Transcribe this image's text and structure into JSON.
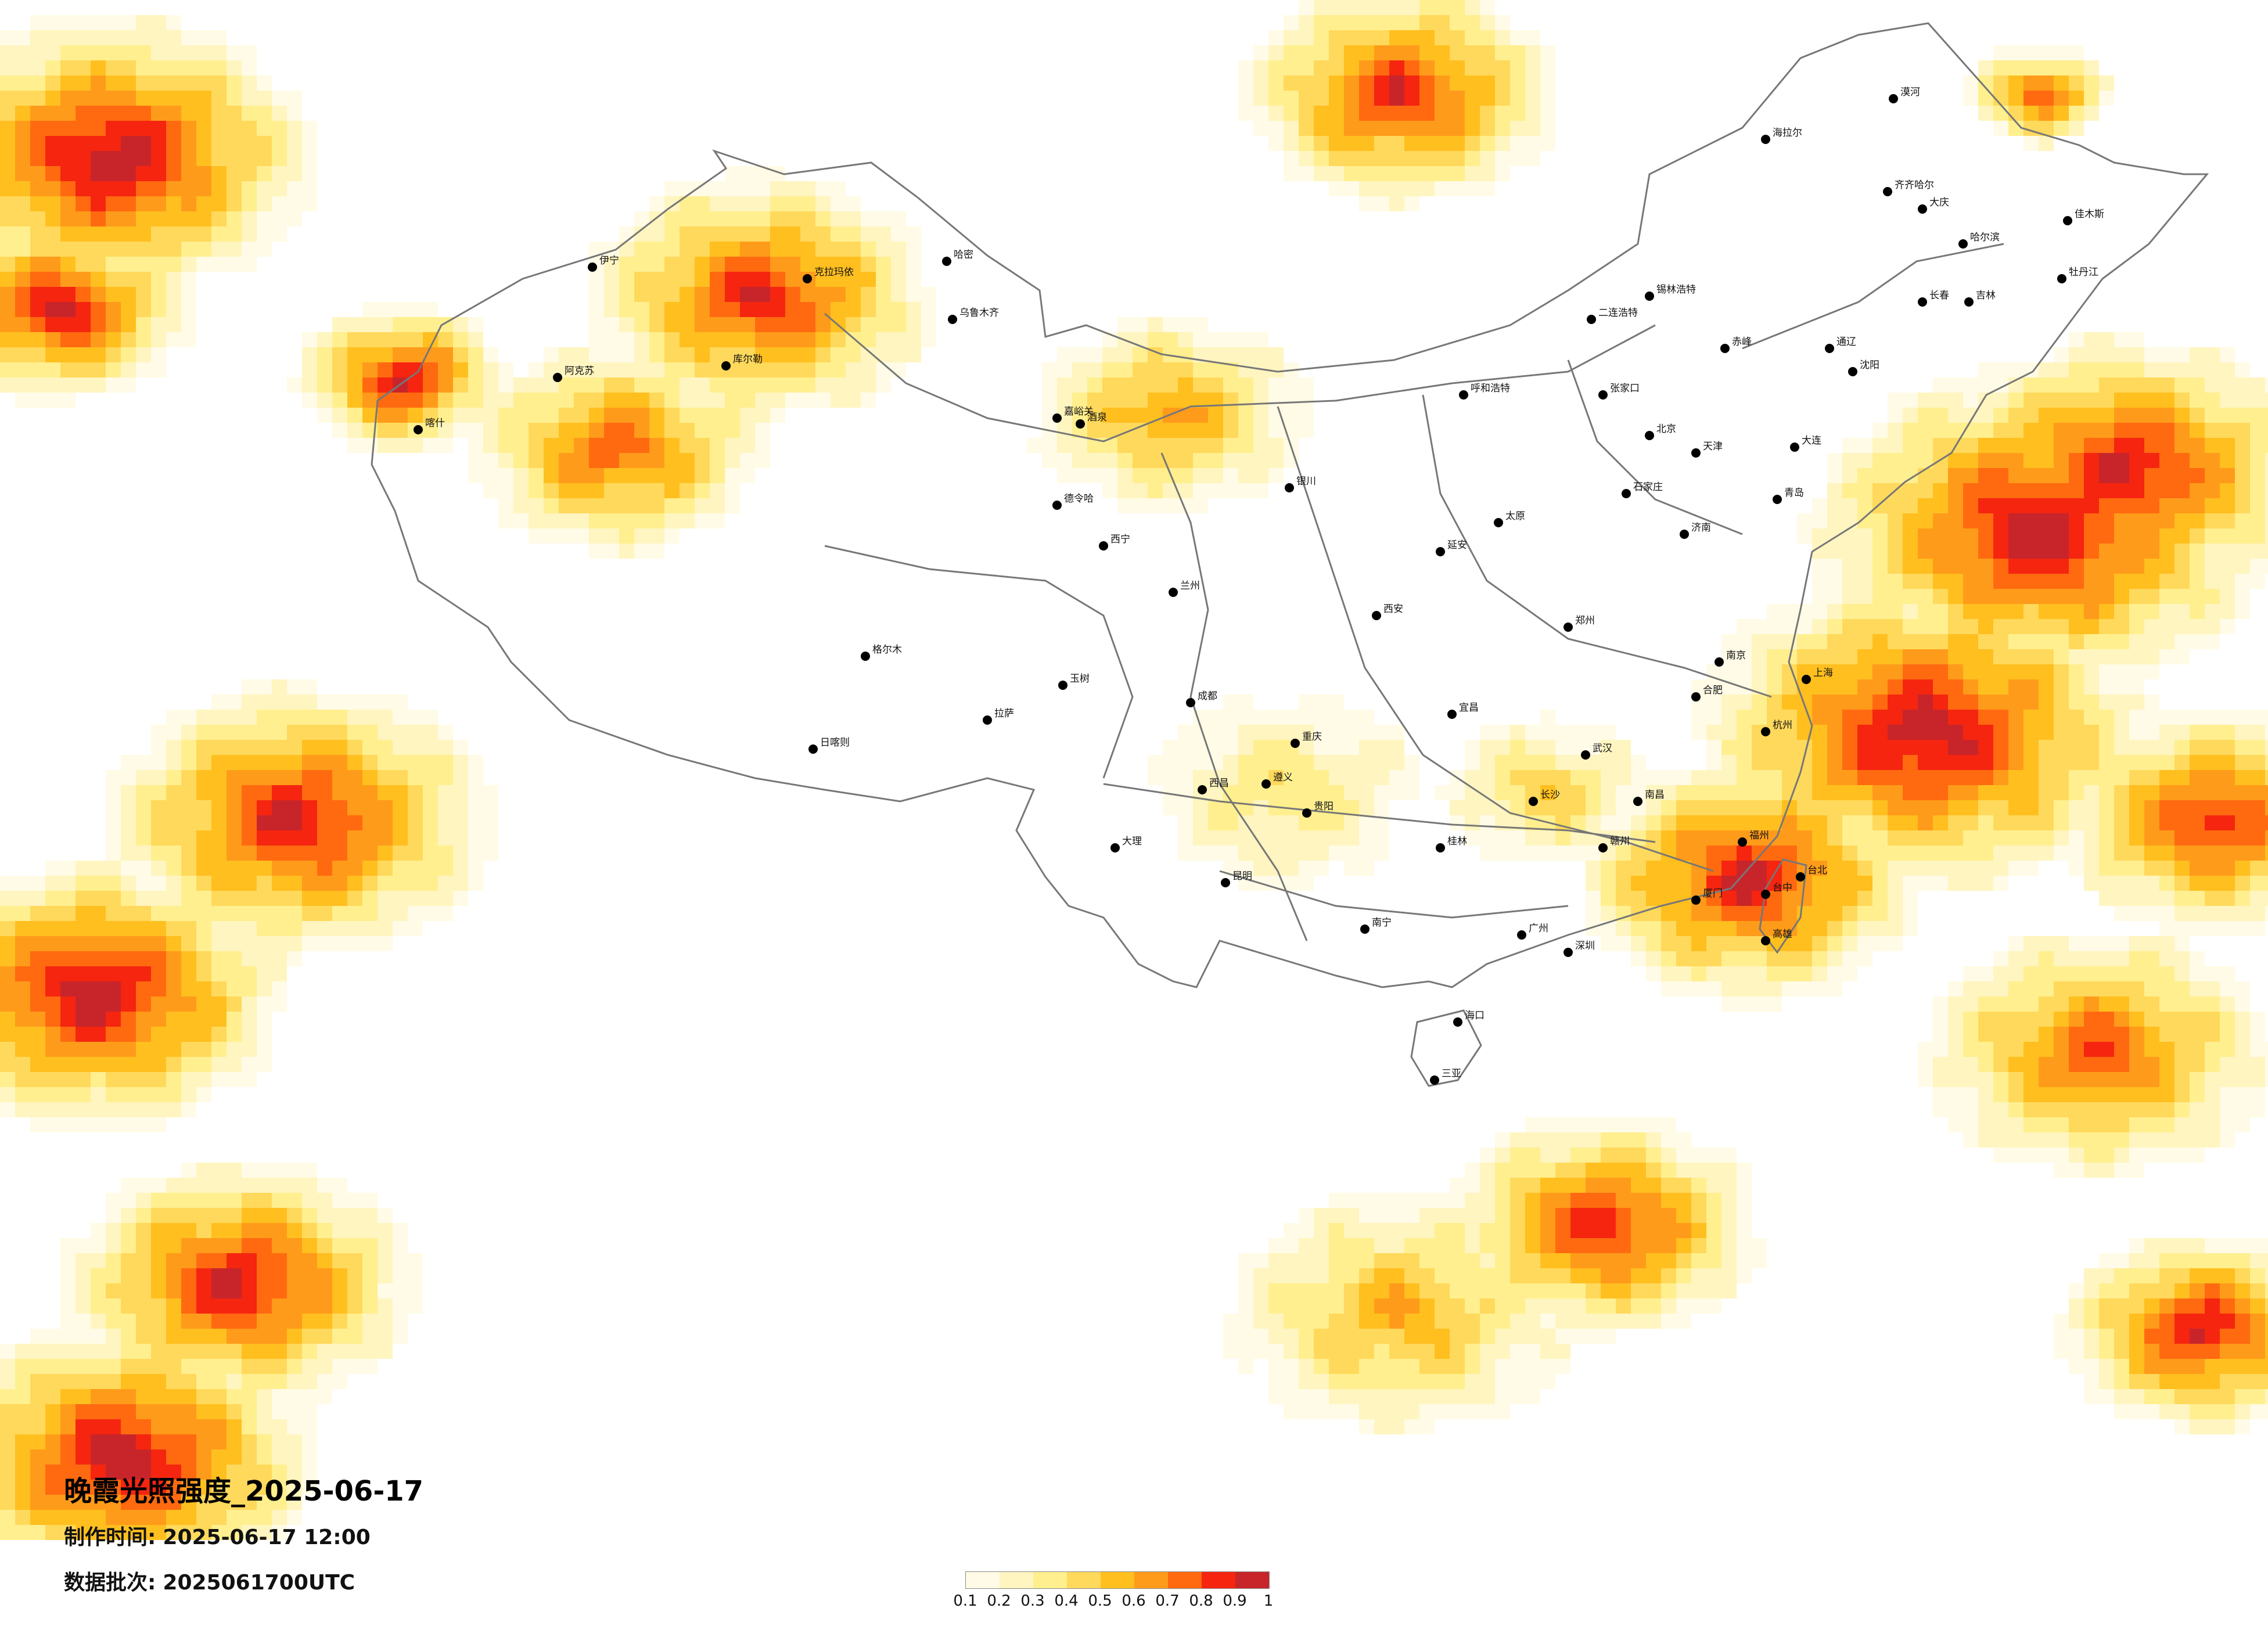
{
  "title": "晚霞光照强度_2025-06-17",
  "meta": {
    "made_label": "制作时间:",
    "made_value": "2025-06-17 12:00",
    "batch_label": "数据批次:",
    "batch_value": "2025061700UTC"
  },
  "legend": {
    "colors": [
      "#fffbe6",
      "#fff5c0",
      "#ffef8f",
      "#ffd95c",
      "#ffbf1f",
      "#ff9b1a",
      "#ff6a10",
      "#f52510",
      "#c8252a"
    ],
    "ticks": [
      "0.1",
      "0.2",
      "0.3",
      "0.4",
      "0.5",
      "0.6",
      "0.7",
      "0.8",
      "0.9",
      "1"
    ]
  },
  "cities": [
    {
      "name": "漠河"
    },
    {
      "name": "海拉尔"
    },
    {
      "name": "齐齐哈尔"
    },
    {
      "name": "大庆"
    },
    {
      "name": "哈尔滨"
    },
    {
      "name": "佳木斯"
    },
    {
      "name": "牡丹江"
    },
    {
      "name": "长春"
    },
    {
      "name": "吉林"
    },
    {
      "name": "沈阳"
    },
    {
      "name": "大连"
    },
    {
      "name": "锡林浩特"
    },
    {
      "name": "呼和浩特"
    },
    {
      "name": "张家口"
    },
    {
      "name": "北京"
    },
    {
      "name": "天津"
    },
    {
      "name": "石家庄"
    },
    {
      "name": "太原"
    },
    {
      "name": "济南"
    },
    {
      "name": "青岛"
    },
    {
      "name": "郑州"
    },
    {
      "name": "西安"
    },
    {
      "name": "兰州"
    },
    {
      "name": "西宁"
    },
    {
      "name": "银川"
    },
    {
      "name": "南京"
    },
    {
      "name": "上海"
    },
    {
      "name": "杭州"
    },
    {
      "name": "合肥"
    },
    {
      "name": "武汉"
    },
    {
      "name": "长沙"
    },
    {
      "name": "南昌"
    },
    {
      "name": "福州"
    },
    {
      "name": "厦门"
    },
    {
      "name": "广州"
    },
    {
      "name": "深圳"
    },
    {
      "name": "南宁"
    },
    {
      "name": "海口"
    },
    {
      "name": "三亚"
    },
    {
      "name": "贵阳"
    },
    {
      "name": "昆明"
    },
    {
      "name": "成都"
    },
    {
      "name": "重庆"
    },
    {
      "name": "拉萨"
    },
    {
      "name": "日喀则"
    },
    {
      "name": "格尔木"
    },
    {
      "name": "乌鲁木齐"
    },
    {
      "name": "克拉玛依"
    },
    {
      "name": "伊宁"
    },
    {
      "name": "喀什"
    },
    {
      "name": "阿克苏"
    },
    {
      "name": "库尔勒"
    },
    {
      "name": "哈密"
    },
    {
      "name": "德令哈"
    },
    {
      "name": "玉树"
    },
    {
      "name": "台北"
    },
    {
      "name": "台中"
    },
    {
      "name": "高雄"
    },
    {
      "name": "桂林"
    },
    {
      "name": "大理"
    },
    {
      "name": "西昌"
    },
    {
      "name": "酒泉"
    },
    {
      "name": "嘉峪关"
    },
    {
      "name": "二连浩特"
    },
    {
      "name": "通辽"
    },
    {
      "name": "赤峰"
    },
    {
      "name": "延安"
    },
    {
      "name": "宜昌"
    },
    {
      "name": "遵义"
    },
    {
      "name": "赣州"
    }
  ]
}
